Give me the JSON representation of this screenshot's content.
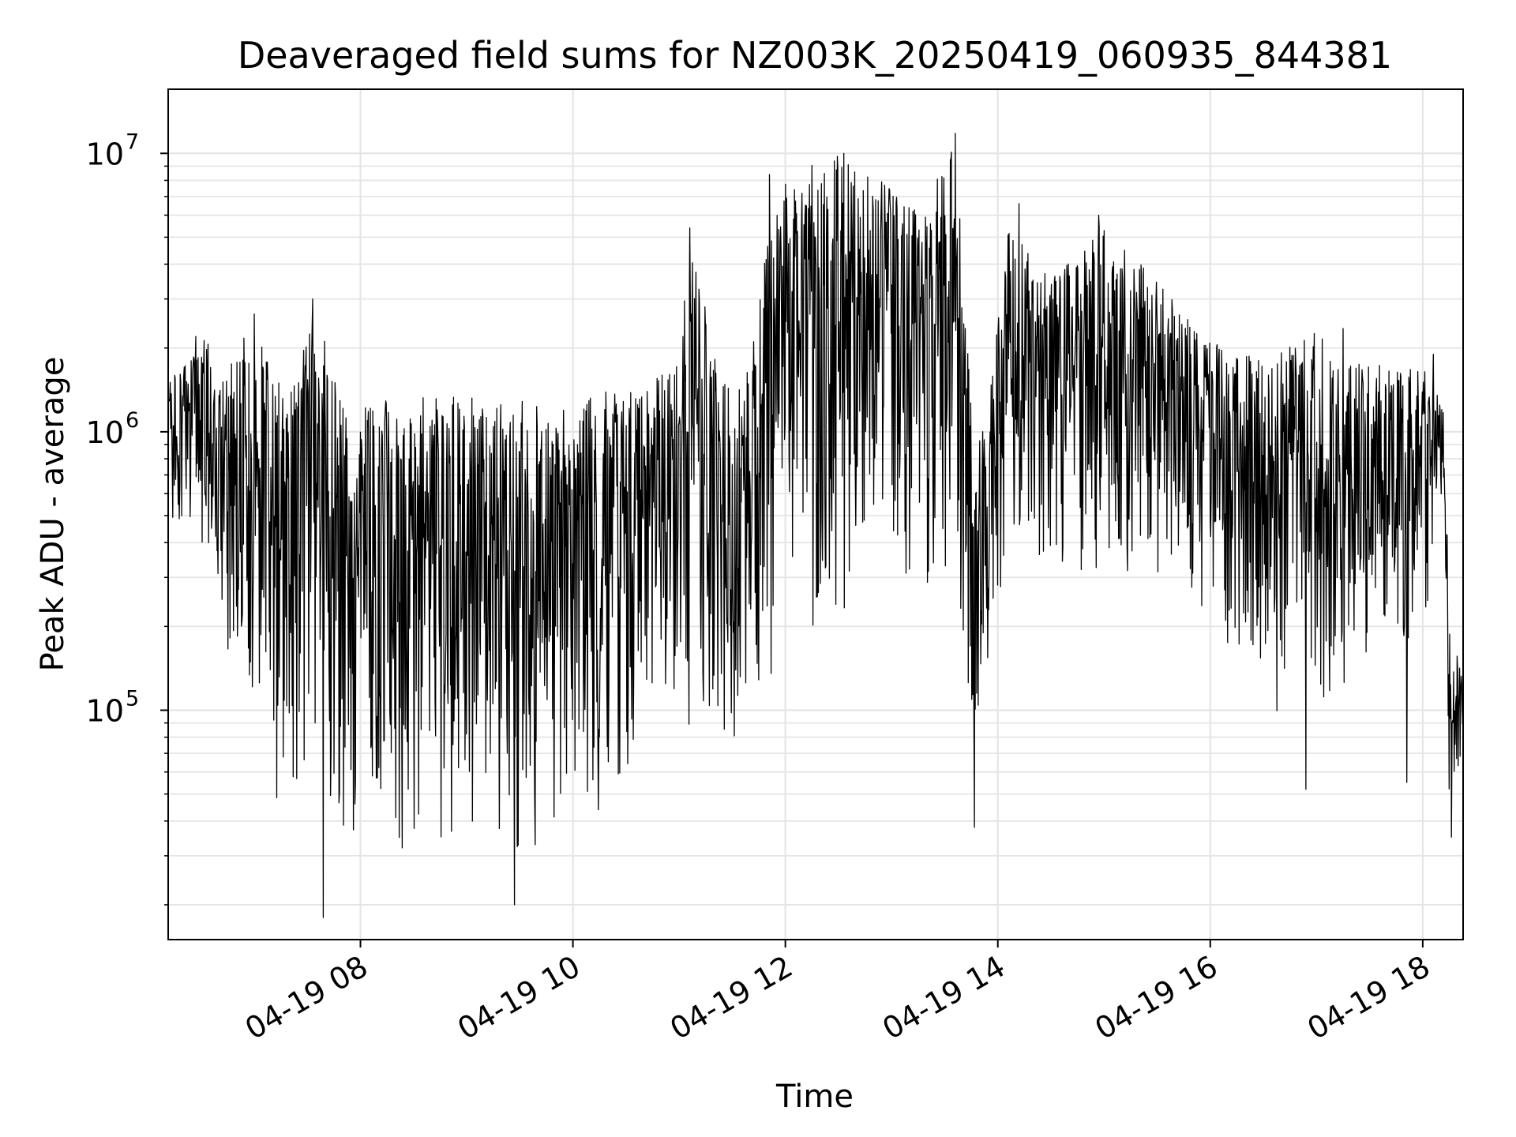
{
  "chart_data": {
    "type": "line",
    "title": "Deaveraged field sums for NZ003K_20250419_060935_844381",
    "xlabel": "Time",
    "ylabel": "Peak ADU - average",
    "yscale": "log",
    "ylim": [
      15000,
      17000000
    ],
    "xlim_hours": [
      6.19,
      18.38
    ],
    "grid": true,
    "line_color": "#000000",
    "grid_color": "#e5e5e5",
    "x_ticks": [
      {
        "value": 8,
        "label": "04-19 08"
      },
      {
        "value": 10,
        "label": "04-19 10"
      },
      {
        "value": 12,
        "label": "04-19 12"
      },
      {
        "value": 14,
        "label": "04-19 14"
      },
      {
        "value": 16,
        "label": "04-19 16"
      },
      {
        "value": 18,
        "label": "04-19 18"
      }
    ],
    "y_ticks": [
      {
        "value": 100000,
        "base": "10",
        "exp": "5"
      },
      {
        "value": 1000000,
        "base": "10",
        "exp": "6"
      },
      {
        "value": 10000000,
        "base": "10",
        "exp": "7"
      }
    ],
    "series": [
      {
        "envelope": [
          {
            "t": 6.2,
            "lo": 380000,
            "hi": 1500000
          },
          {
            "t": 6.5,
            "lo": 400000,
            "hi": 2200000
          },
          {
            "t": 6.8,
            "lo": 120000,
            "hi": 1800000
          },
          {
            "t": 7.0,
            "lo": 60000,
            "hi": 2600000
          },
          {
            "t": 7.3,
            "lo": 40000,
            "hi": 1300000
          },
          {
            "t": 7.6,
            "lo": 35000,
            "hi": 3000000
          },
          {
            "t": 7.8,
            "lo": 25000,
            "hi": 1300000
          },
          {
            "t": 8.2,
            "lo": 30000,
            "hi": 1350000
          },
          {
            "t": 8.8,
            "lo": 28000,
            "hi": 1350000
          },
          {
            "t": 9.5,
            "lo": 22000,
            "hi": 1300000
          },
          {
            "t": 10.0,
            "lo": 35000,
            "hi": 1350000
          },
          {
            "t": 10.3,
            "lo": 40000,
            "hi": 1400000
          },
          {
            "t": 10.7,
            "lo": 80000,
            "hi": 1500000
          },
          {
            "t": 11.0,
            "lo": 90000,
            "hi": 1800000
          },
          {
            "t": 11.1,
            "lo": 60000,
            "hi": 5400000
          },
          {
            "t": 11.4,
            "lo": 50000,
            "hi": 1500000
          },
          {
            "t": 11.6,
            "lo": 60000,
            "hi": 1400000
          },
          {
            "t": 11.8,
            "lo": 80000,
            "hi": 4200000
          },
          {
            "t": 12.0,
            "lo": 150000,
            "hi": 8500000
          },
          {
            "t": 12.5,
            "lo": 200000,
            "hi": 10000000
          },
          {
            "t": 13.0,
            "lo": 300000,
            "hi": 7500000
          },
          {
            "t": 13.3,
            "lo": 250000,
            "hi": 6000000
          },
          {
            "t": 13.6,
            "lo": 200000,
            "hi": 12000000
          },
          {
            "t": 13.75,
            "lo": 40000,
            "hi": 1200000
          },
          {
            "t": 13.9,
            "lo": 90000,
            "hi": 1100000
          },
          {
            "t": 14.1,
            "lo": 250000,
            "hi": 5400000
          },
          {
            "t": 14.5,
            "lo": 300000,
            "hi": 3500000
          },
          {
            "t": 15.0,
            "lo": 250000,
            "hi": 5800000
          },
          {
            "t": 15.5,
            "lo": 300000,
            "hi": 3500000
          },
          {
            "t": 16.0,
            "lo": 200000,
            "hi": 2100000
          },
          {
            "t": 16.5,
            "lo": 100000,
            "hi": 1800000
          },
          {
            "t": 17.0,
            "lo": 90000,
            "hi": 2300000
          },
          {
            "t": 17.5,
            "lo": 120000,
            "hi": 1700000
          },
          {
            "t": 18.0,
            "lo": 150000,
            "hi": 1900000
          },
          {
            "t": 18.2,
            "lo": 600000,
            "hi": 1200000
          },
          {
            "t": 18.25,
            "lo": 35000,
            "hi": 220000
          },
          {
            "t": 18.38,
            "lo": 80000,
            "hi": 130000
          }
        ],
        "notable_peaks": [
          {
            "t": 6.3,
            "value": 650000
          },
          {
            "t": 6.45,
            "value": 2200000
          },
          {
            "t": 7.0,
            "value": 2650000
          },
          {
            "t": 7.55,
            "value": 3000000
          },
          {
            "t": 11.1,
            "value": 5400000
          },
          {
            "t": 11.85,
            "value": 8400000
          },
          {
            "t": 12.55,
            "value": 10000000
          },
          {
            "t": 13.6,
            "value": 11800000
          },
          {
            "t": 14.2,
            "value": 6600000
          },
          {
            "t": 14.95,
            "value": 6000000
          },
          {
            "t": 17.25,
            "value": 2350000
          },
          {
            "t": 18.1,
            "value": 1900000
          }
        ],
        "notable_troughs": [
          {
            "t": 7.65,
            "value": 18000
          },
          {
            "t": 9.45,
            "value": 20000
          },
          {
            "t": 13.78,
            "value": 38000
          },
          {
            "t": 16.9,
            "value": 52000
          },
          {
            "t": 17.85,
            "value": 55000
          },
          {
            "t": 18.27,
            "value": 35000
          }
        ]
      }
    ]
  }
}
